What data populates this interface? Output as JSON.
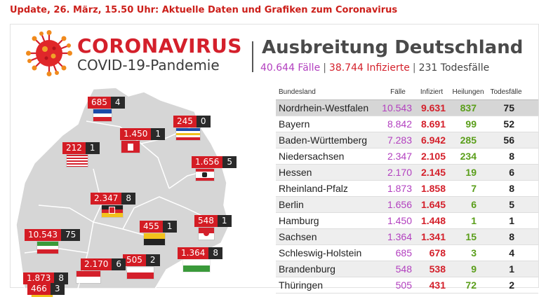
{
  "headline": "Update, 26. März, 15.50 Uhr: Aktuelle Daten und Grafiken zum Coronavirus",
  "header": {
    "title": "CORONAVIRUS",
    "subtitle": "COVID-19-Pandemie",
    "region_title": "Ausbreitung Deutschland",
    "cases": "40.644 Fälle",
    "infected": "38.744 Infizierte",
    "deaths": "231 Todesfälle",
    "separator": "|"
  },
  "colors": {
    "accent_red": "#d4202b",
    "cases_purple": "#b23fbf",
    "healed_green": "#5a9e1a"
  },
  "table": {
    "headers": {
      "state": "Bundesland",
      "cases": "Fälle",
      "infected": "Infiziert",
      "healed": "Heilungen",
      "deaths": "Todesfälle"
    },
    "rows": [
      {
        "state": "Nordrhein-Westfalen",
        "cases": "10.543",
        "infected": "9.631",
        "healed": "837",
        "deaths": "75"
      },
      {
        "state": "Bayern",
        "cases": "8.842",
        "infected": "8.691",
        "healed": "99",
        "deaths": "52"
      },
      {
        "state": "Baden-Württemberg",
        "cases": "7.283",
        "infected": "6.942",
        "healed": "285",
        "deaths": "56"
      },
      {
        "state": "Niedersachsen",
        "cases": "2.347",
        "infected": "2.105",
        "healed": "234",
        "deaths": "8"
      },
      {
        "state": "Hessen",
        "cases": "2.170",
        "infected": "2.145",
        "healed": "19",
        "deaths": "6"
      },
      {
        "state": "Rheinland-Pfalz",
        "cases": "1.873",
        "infected": "1.858",
        "healed": "7",
        "deaths": "8"
      },
      {
        "state": "Berlin",
        "cases": "1.656",
        "infected": "1.645",
        "healed": "6",
        "deaths": "5"
      },
      {
        "state": "Hamburg",
        "cases": "1.450",
        "infected": "1.448",
        "healed": "1",
        "deaths": "1"
      },
      {
        "state": "Sachsen",
        "cases": "1.364",
        "infected": "1.341",
        "healed": "15",
        "deaths": "8"
      },
      {
        "state": "Schleswig-Holstein",
        "cases": "685",
        "infected": "678",
        "healed": "3",
        "deaths": "4"
      },
      {
        "state": "Brandenburg",
        "cases": "548",
        "infected": "538",
        "healed": "9",
        "deaths": "1"
      },
      {
        "state": "Thüringen",
        "cases": "505",
        "infected": "431",
        "healed": "72",
        "deaths": "2"
      }
    ]
  },
  "map": {
    "labels": [
      {
        "id": "schleswig-holstein",
        "cases": "685",
        "deaths": "4"
      },
      {
        "id": "hamburg",
        "cases": "1.450",
        "deaths": "1"
      },
      {
        "id": "mecklenburg-vorpommern",
        "cases": "245",
        "deaths": "0"
      },
      {
        "id": "bremen",
        "cases": "212",
        "deaths": "1"
      },
      {
        "id": "berlin",
        "cases": "1.656",
        "deaths": "5"
      },
      {
        "id": "niedersachsen",
        "cases": "2.347",
        "deaths": "8"
      },
      {
        "id": "sachsen-anhalt",
        "cases": "455",
        "deaths": "1"
      },
      {
        "id": "brandenburg",
        "cases": "548",
        "deaths": "1"
      },
      {
        "id": "nordrhein-westfalen",
        "cases": "10.543",
        "deaths": "75"
      },
      {
        "id": "thueringen",
        "cases": "505",
        "deaths": "2"
      },
      {
        "id": "sachsen",
        "cases": "1.364",
        "deaths": "8"
      },
      {
        "id": "hessen",
        "cases": "2.170",
        "deaths": "6"
      },
      {
        "id": "rheinland-pfalz",
        "cases": "1.873",
        "deaths": "8"
      },
      {
        "id": "saarland",
        "cases": "466",
        "deaths": "3"
      }
    ]
  }
}
